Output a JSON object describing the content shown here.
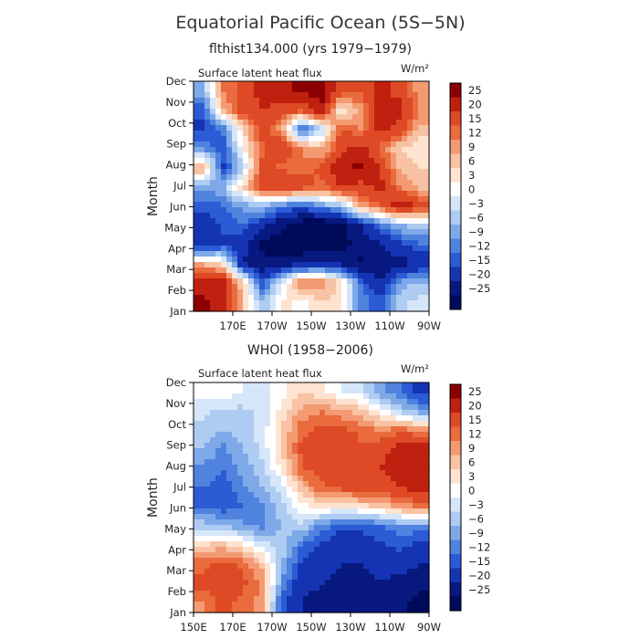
{
  "figure": {
    "title": "Equatorial Pacific Ocean (5S−5N)"
  },
  "colorbar": {
    "labels": [
      "25",
      "20",
      "15",
      "12",
      "9",
      "6",
      "3",
      "0",
      "−3",
      "−6",
      "−9",
      "−12",
      "−15",
      "−20",
      "−25"
    ],
    "colors": [
      "#8b0000",
      "#c0200f",
      "#dd4a25",
      "#ea6b3d",
      "#f49a73",
      "#f8c3a4",
      "#fde3d0",
      "#ffffff",
      "#d6e6fa",
      "#aecbf2",
      "#7ea9e9",
      "#4f83de",
      "#2c5bd6",
      "#1434b3",
      "#07187f",
      "#000a5a"
    ]
  },
  "chart_data": [
    {
      "type": "heatmap",
      "subtitle": "flthist134.000 (yrs 1979−1979)",
      "panel_label": "Surface latent heat flux",
      "units": "W/m²",
      "ylabel": "Month",
      "x_ticks": [
        "170E",
        "170W",
        "150W",
        "130W",
        "110W",
        "90W"
      ],
      "y_ticks": [
        "Jan",
        "Feb",
        "Mar",
        "Apr",
        "May",
        "Jun",
        "Jul",
        "Aug",
        "Sep",
        "Oct",
        "Nov",
        "Dec"
      ],
      "x_range": [
        "150E",
        "90W"
      ],
      "value_range": [
        -25,
        25
      ],
      "x_lon": [
        155,
        165,
        175,
        185,
        195,
        205,
        215,
        225,
        235,
        245,
        255,
        265
      ],
      "months": [
        "Jan",
        "Feb",
        "Mar",
        "Apr",
        "May",
        "Jun",
        "Jul",
        "Aug",
        "Sep",
        "Oct",
        "Nov",
        "Dec"
      ],
      "values": [
        [
          26,
          22,
          8,
          -6,
          4,
          2,
          6,
          3,
          -10,
          -14,
          -4,
          -2
        ],
        [
          22,
          24,
          6,
          -14,
          -2,
          14,
          12,
          6,
          -12,
          -20,
          -8,
          -5
        ],
        [
          8,
          4,
          -20,
          -24,
          -22,
          -22,
          -20,
          -22,
          -26,
          -24,
          -22,
          -20
        ],
        [
          -20,
          -16,
          -18,
          -26,
          -28,
          -28,
          -27,
          -26,
          -24,
          -20,
          -16,
          -12
        ],
        [
          -18,
          -14,
          -12,
          -18,
          -24,
          -28,
          -30,
          -28,
          -20,
          -12,
          -6,
          -4
        ],
        [
          -14,
          -12,
          -8,
          -6,
          -10,
          -14,
          -8,
          -6,
          10,
          14,
          24,
          18
        ],
        [
          -8,
          -6,
          6,
          18,
          22,
          18,
          14,
          22,
          18,
          22,
          12,
          8
        ],
        [
          10,
          -16,
          -4,
          16,
          14,
          12,
          16,
          24,
          26,
          20,
          8,
          6
        ],
        [
          -10,
          -14,
          2,
          14,
          20,
          12,
          8,
          18,
          22,
          14,
          6,
          3
        ],
        [
          -16,
          -12,
          6,
          18,
          10,
          -14,
          -4,
          16,
          12,
          22,
          18,
          8
        ],
        [
          -14,
          8,
          18,
          20,
          18,
          16,
          24,
          2,
          10,
          24,
          22,
          12
        ],
        [
          -6,
          12,
          16,
          22,
          24,
          26,
          28,
          18,
          16,
          22,
          18,
          10
        ]
      ]
    },
    {
      "type": "heatmap",
      "subtitle": "WHOI (1958−2006)",
      "panel_label": "Surface latent heat flux",
      "units": "W/m²",
      "ylabel": "Month",
      "x_ticks": [
        "150E",
        "170E",
        "170W",
        "150W",
        "130W",
        "110W",
        "90W"
      ],
      "y_ticks": [
        "Jan",
        "Feb",
        "Mar",
        "Apr",
        "May",
        "Jun",
        "Jul",
        "Aug",
        "Sep",
        "Oct",
        "Nov",
        "Dec"
      ],
      "x_range": [
        "150E",
        "90W"
      ],
      "value_range": [
        -25,
        25
      ],
      "x_lon": [
        155,
        165,
        175,
        185,
        195,
        205,
        215,
        225,
        235,
        245,
        255,
        265
      ],
      "months": [
        "Jan",
        "Feb",
        "Mar",
        "Apr",
        "May",
        "Jun",
        "Jul",
        "Aug",
        "Sep",
        "Oct",
        "Nov",
        "Dec"
      ],
      "values": [
        [
          12,
          16,
          14,
          10,
          -14,
          -20,
          -22,
          -24,
          -22,
          -22,
          -24,
          -26
        ],
        [
          16,
          20,
          16,
          12,
          -10,
          -18,
          -20,
          -22,
          -22,
          -20,
          -22,
          -24
        ],
        [
          14,
          16,
          14,
          8,
          -6,
          -16,
          -18,
          -20,
          -20,
          -18,
          -18,
          -20
        ],
        [
          6,
          8,
          4,
          -2,
          -4,
          -12,
          -16,
          -18,
          -18,
          -16,
          -14,
          -16
        ],
        [
          -4,
          -6,
          -8,
          -10,
          -6,
          -4,
          -10,
          -14,
          -14,
          -12,
          -10,
          -10
        ],
        [
          -12,
          -14,
          -12,
          -10,
          -4,
          2,
          4,
          2,
          4,
          6,
          10,
          12
        ],
        [
          -12,
          -14,
          -10,
          -6,
          -2,
          8,
          14,
          16,
          18,
          18,
          20,
          22
        ],
        [
          -10,
          -12,
          -8,
          -4,
          4,
          14,
          18,
          20,
          18,
          20,
          22,
          24
        ],
        [
          -6,
          -10,
          -6,
          -2,
          6,
          16,
          20,
          20,
          16,
          18,
          22,
          25
        ],
        [
          -4,
          -6,
          -4,
          -2,
          6,
          14,
          16,
          16,
          14,
          12,
          14,
          12
        ],
        [
          -2,
          -4,
          -4,
          -2,
          4,
          10,
          12,
          10,
          8,
          2,
          -4,
          -8
        ],
        [
          2,
          2,
          0,
          -2,
          2,
          6,
          4,
          0,
          -2,
          -8,
          -12,
          -16
        ]
      ]
    }
  ]
}
